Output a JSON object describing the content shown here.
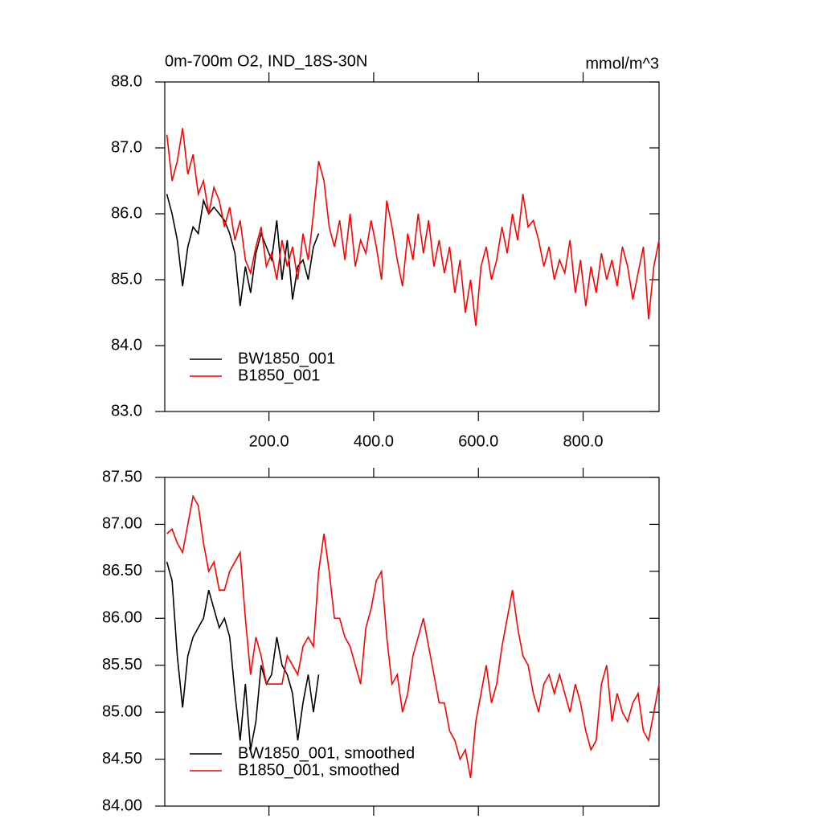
{
  "chart_data": [
    {
      "type": "line",
      "title": "0m-700m O2, IND_18S-30N",
      "units": "mmol/m^3",
      "xlim": [
        1,
        945
      ],
      "xticks": [
        {
          "value": 200,
          "label": "200.0"
        },
        {
          "value": 400,
          "label": "400.0"
        },
        {
          "value": 600,
          "label": "600.0"
        },
        {
          "value": 800,
          "label": "800.0"
        }
      ],
      "ylim": [
        83,
        88
      ],
      "yticks": [
        {
          "value": 83,
          "label": "83.0"
        },
        {
          "value": 84,
          "label": "84.0"
        },
        {
          "value": 85,
          "label": "85.0"
        },
        {
          "value": 86,
          "label": "86.0"
        },
        {
          "value": 87,
          "label": "87.0"
        },
        {
          "value": 88,
          "label": "88.0"
        }
      ],
      "legend": "lower left",
      "series": [
        {
          "name": "BW1850_001",
          "color": "#000000",
          "x": [
            5,
            15,
            25,
            35,
            45,
            55,
            65,
            75,
            85,
            95,
            105,
            115,
            125,
            135,
            145,
            155,
            165,
            175,
            185,
            195,
            205,
            215,
            225,
            235,
            245,
            255,
            265,
            275,
            285,
            295
          ],
          "values": [
            86.3,
            86.0,
            85.6,
            84.9,
            85.5,
            85.8,
            85.7,
            86.2,
            86.0,
            86.1,
            86.0,
            85.9,
            85.7,
            85.4,
            84.6,
            85.2,
            84.8,
            85.4,
            85.7,
            85.5,
            85.3,
            85.9,
            85.0,
            85.6,
            84.7,
            85.2,
            85.3,
            85.0,
            85.5,
            85.7
          ]
        },
        {
          "name": "B1850_001",
          "color": "#ff0000",
          "x": [
            5,
            15,
            25,
            35,
            45,
            55,
            65,
            75,
            85,
            95,
            105,
            115,
            125,
            135,
            145,
            155,
            165,
            175,
            185,
            195,
            205,
            215,
            225,
            235,
            245,
            255,
            265,
            275,
            285,
            295,
            305,
            315,
            325,
            335,
            345,
            355,
            365,
            375,
            385,
            395,
            405,
            415,
            425,
            435,
            445,
            455,
            465,
            475,
            485,
            495,
            505,
            515,
            525,
            535,
            545,
            555,
            565,
            575,
            585,
            595,
            605,
            615,
            625,
            635,
            645,
            655,
            665,
            675,
            685,
            695,
            705,
            715,
            725,
            735,
            745,
            755,
            765,
            775,
            785,
            795,
            805,
            815,
            825,
            835,
            845,
            855,
            865,
            875,
            885,
            895,
            905,
            915,
            925,
            935,
            945
          ],
          "values": [
            87.2,
            86.5,
            86.8,
            87.3,
            86.6,
            86.9,
            86.3,
            86.5,
            86.0,
            86.4,
            86.2,
            85.8,
            86.1,
            85.6,
            85.9,
            85.3,
            85.1,
            85.5,
            85.8,
            85.2,
            85.4,
            85.0,
            85.6,
            85.2,
            85.5,
            85.0,
            85.7,
            85.3,
            86.0,
            86.8,
            86.5,
            85.8,
            85.5,
            85.9,
            85.3,
            86.0,
            85.2,
            85.6,
            85.4,
            85.9,
            85.5,
            85.0,
            86.2,
            85.8,
            85.3,
            84.9,
            85.7,
            85.3,
            86.0,
            85.4,
            85.9,
            85.2,
            85.6,
            85.1,
            85.5,
            84.8,
            85.3,
            84.5,
            85.0,
            84.3,
            85.2,
            85.5,
            85.0,
            85.3,
            85.8,
            85.4,
            86.0,
            85.6,
            86.3,
            85.8,
            85.9,
            85.6,
            85.2,
            85.5,
            85.0,
            85.3,
            85.1,
            85.6,
            84.8,
            85.3,
            84.6,
            85.2,
            84.8,
            85.4,
            85.0,
            85.3,
            84.9,
            85.5,
            85.2,
            84.7,
            85.1,
            85.5,
            84.4,
            85.2,
            85.6
          ]
        }
      ]
    },
    {
      "type": "line",
      "xlim": [
        1,
        945
      ],
      "ylim": [
        84,
        87.5
      ],
      "yticks": [
        {
          "value": 84,
          "label": "84.00"
        },
        {
          "value": 84.5,
          "label": "84.50"
        },
        {
          "value": 85,
          "label": "85.00"
        },
        {
          "value": 85.5,
          "label": "85.50"
        },
        {
          "value": 86,
          "label": "86.00"
        },
        {
          "value": 86.5,
          "label": "86.50"
        },
        {
          "value": 87,
          "label": "87.00"
        },
        {
          "value": 87.5,
          "label": "87.50"
        }
      ],
      "legend": "lower left",
      "series": [
        {
          "name": "BW1850_001, smoothed",
          "color": "#000000",
          "x": [
            5,
            15,
            25,
            35,
            45,
            55,
            65,
            75,
            85,
            95,
            105,
            115,
            125,
            135,
            145,
            155,
            165,
            175,
            185,
            195,
            205,
            215,
            225,
            235,
            245,
            255,
            265,
            275,
            285,
            295
          ],
          "values": [
            86.6,
            86.4,
            85.6,
            85.05,
            85.6,
            85.8,
            85.9,
            86.0,
            86.3,
            86.1,
            85.9,
            86.0,
            85.8,
            85.2,
            84.7,
            85.3,
            84.6,
            84.9,
            85.5,
            85.3,
            85.4,
            85.8,
            85.5,
            85.4,
            85.2,
            84.7,
            85.1,
            85.4,
            85.0,
            85.4
          ]
        },
        {
          "name": "B1850_001, smoothed",
          "color": "#ff0000",
          "x": [
            5,
            15,
            25,
            35,
            45,
            55,
            65,
            75,
            85,
            95,
            105,
            115,
            125,
            135,
            145,
            155,
            165,
            175,
            185,
            195,
            205,
            215,
            225,
            235,
            245,
            255,
            265,
            275,
            285,
            295,
            305,
            315,
            325,
            335,
            345,
            355,
            365,
            375,
            385,
            395,
            405,
            415,
            425,
            435,
            445,
            455,
            465,
            475,
            485,
            495,
            505,
            515,
            525,
            535,
            545,
            555,
            565,
            575,
            585,
            595,
            605,
            615,
            625,
            635,
            645,
            655,
            665,
            675,
            685,
            695,
            705,
            715,
            725,
            735,
            745,
            755,
            765,
            775,
            785,
            795,
            805,
            815,
            825,
            835,
            845,
            855,
            865,
            875,
            885,
            895,
            905,
            915,
            925,
            935,
            945
          ],
          "values": [
            86.9,
            86.95,
            86.8,
            86.7,
            87.0,
            87.3,
            87.2,
            86.8,
            86.5,
            86.6,
            86.3,
            86.3,
            86.5,
            86.6,
            86.7,
            86.0,
            85.4,
            85.8,
            85.6,
            85.3,
            85.3,
            85.3,
            85.3,
            85.6,
            85.5,
            85.4,
            85.7,
            85.8,
            85.7,
            86.5,
            86.9,
            86.5,
            86.0,
            86.0,
            85.8,
            85.7,
            85.5,
            85.3,
            85.9,
            86.1,
            86.4,
            86.5,
            85.8,
            85.3,
            85.4,
            85.0,
            85.2,
            85.6,
            85.8,
            86.0,
            85.7,
            85.4,
            85.1,
            85.1,
            84.8,
            84.7,
            84.5,
            84.6,
            84.3,
            84.9,
            85.2,
            85.5,
            85.1,
            85.3,
            85.7,
            86.0,
            86.3,
            85.9,
            85.6,
            85.5,
            85.2,
            85.0,
            85.3,
            85.4,
            85.2,
            85.4,
            85.2,
            85.0,
            85.3,
            85.1,
            84.8,
            84.6,
            84.7,
            85.3,
            85.5,
            84.9,
            85.2,
            85.0,
            84.9,
            85.1,
            85.2,
            84.8,
            84.7,
            85.0,
            85.3
          ]
        }
      ]
    }
  ]
}
